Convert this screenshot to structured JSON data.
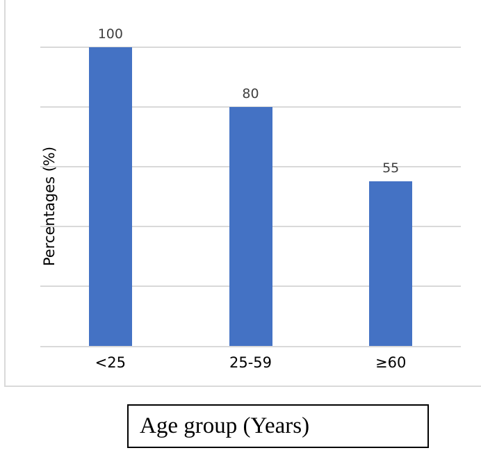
{
  "colors": {
    "bar": "#4472C4",
    "gridline": "#D9D9D9",
    "axis": "#D9D9D9",
    "frame": "#D9D9D9",
    "data_label": "#404040",
    "text": "#000000",
    "box_border": "#000000"
  },
  "chart_data": {
    "type": "bar",
    "categories": [
      "<25",
      "25-59",
      "≥60"
    ],
    "values": [
      100,
      80,
      55
    ],
    "data_labels": [
      "100",
      "80",
      "55"
    ],
    "title": "",
    "xlabel": "Age group (Years)",
    "ylabel": "Percentages (%)",
    "ylim": [
      0,
      100
    ],
    "gridline_step": 20,
    "grid": true,
    "legend": false,
    "y_tick_labels_visible": false,
    "bar_color": "#4472C4"
  }
}
